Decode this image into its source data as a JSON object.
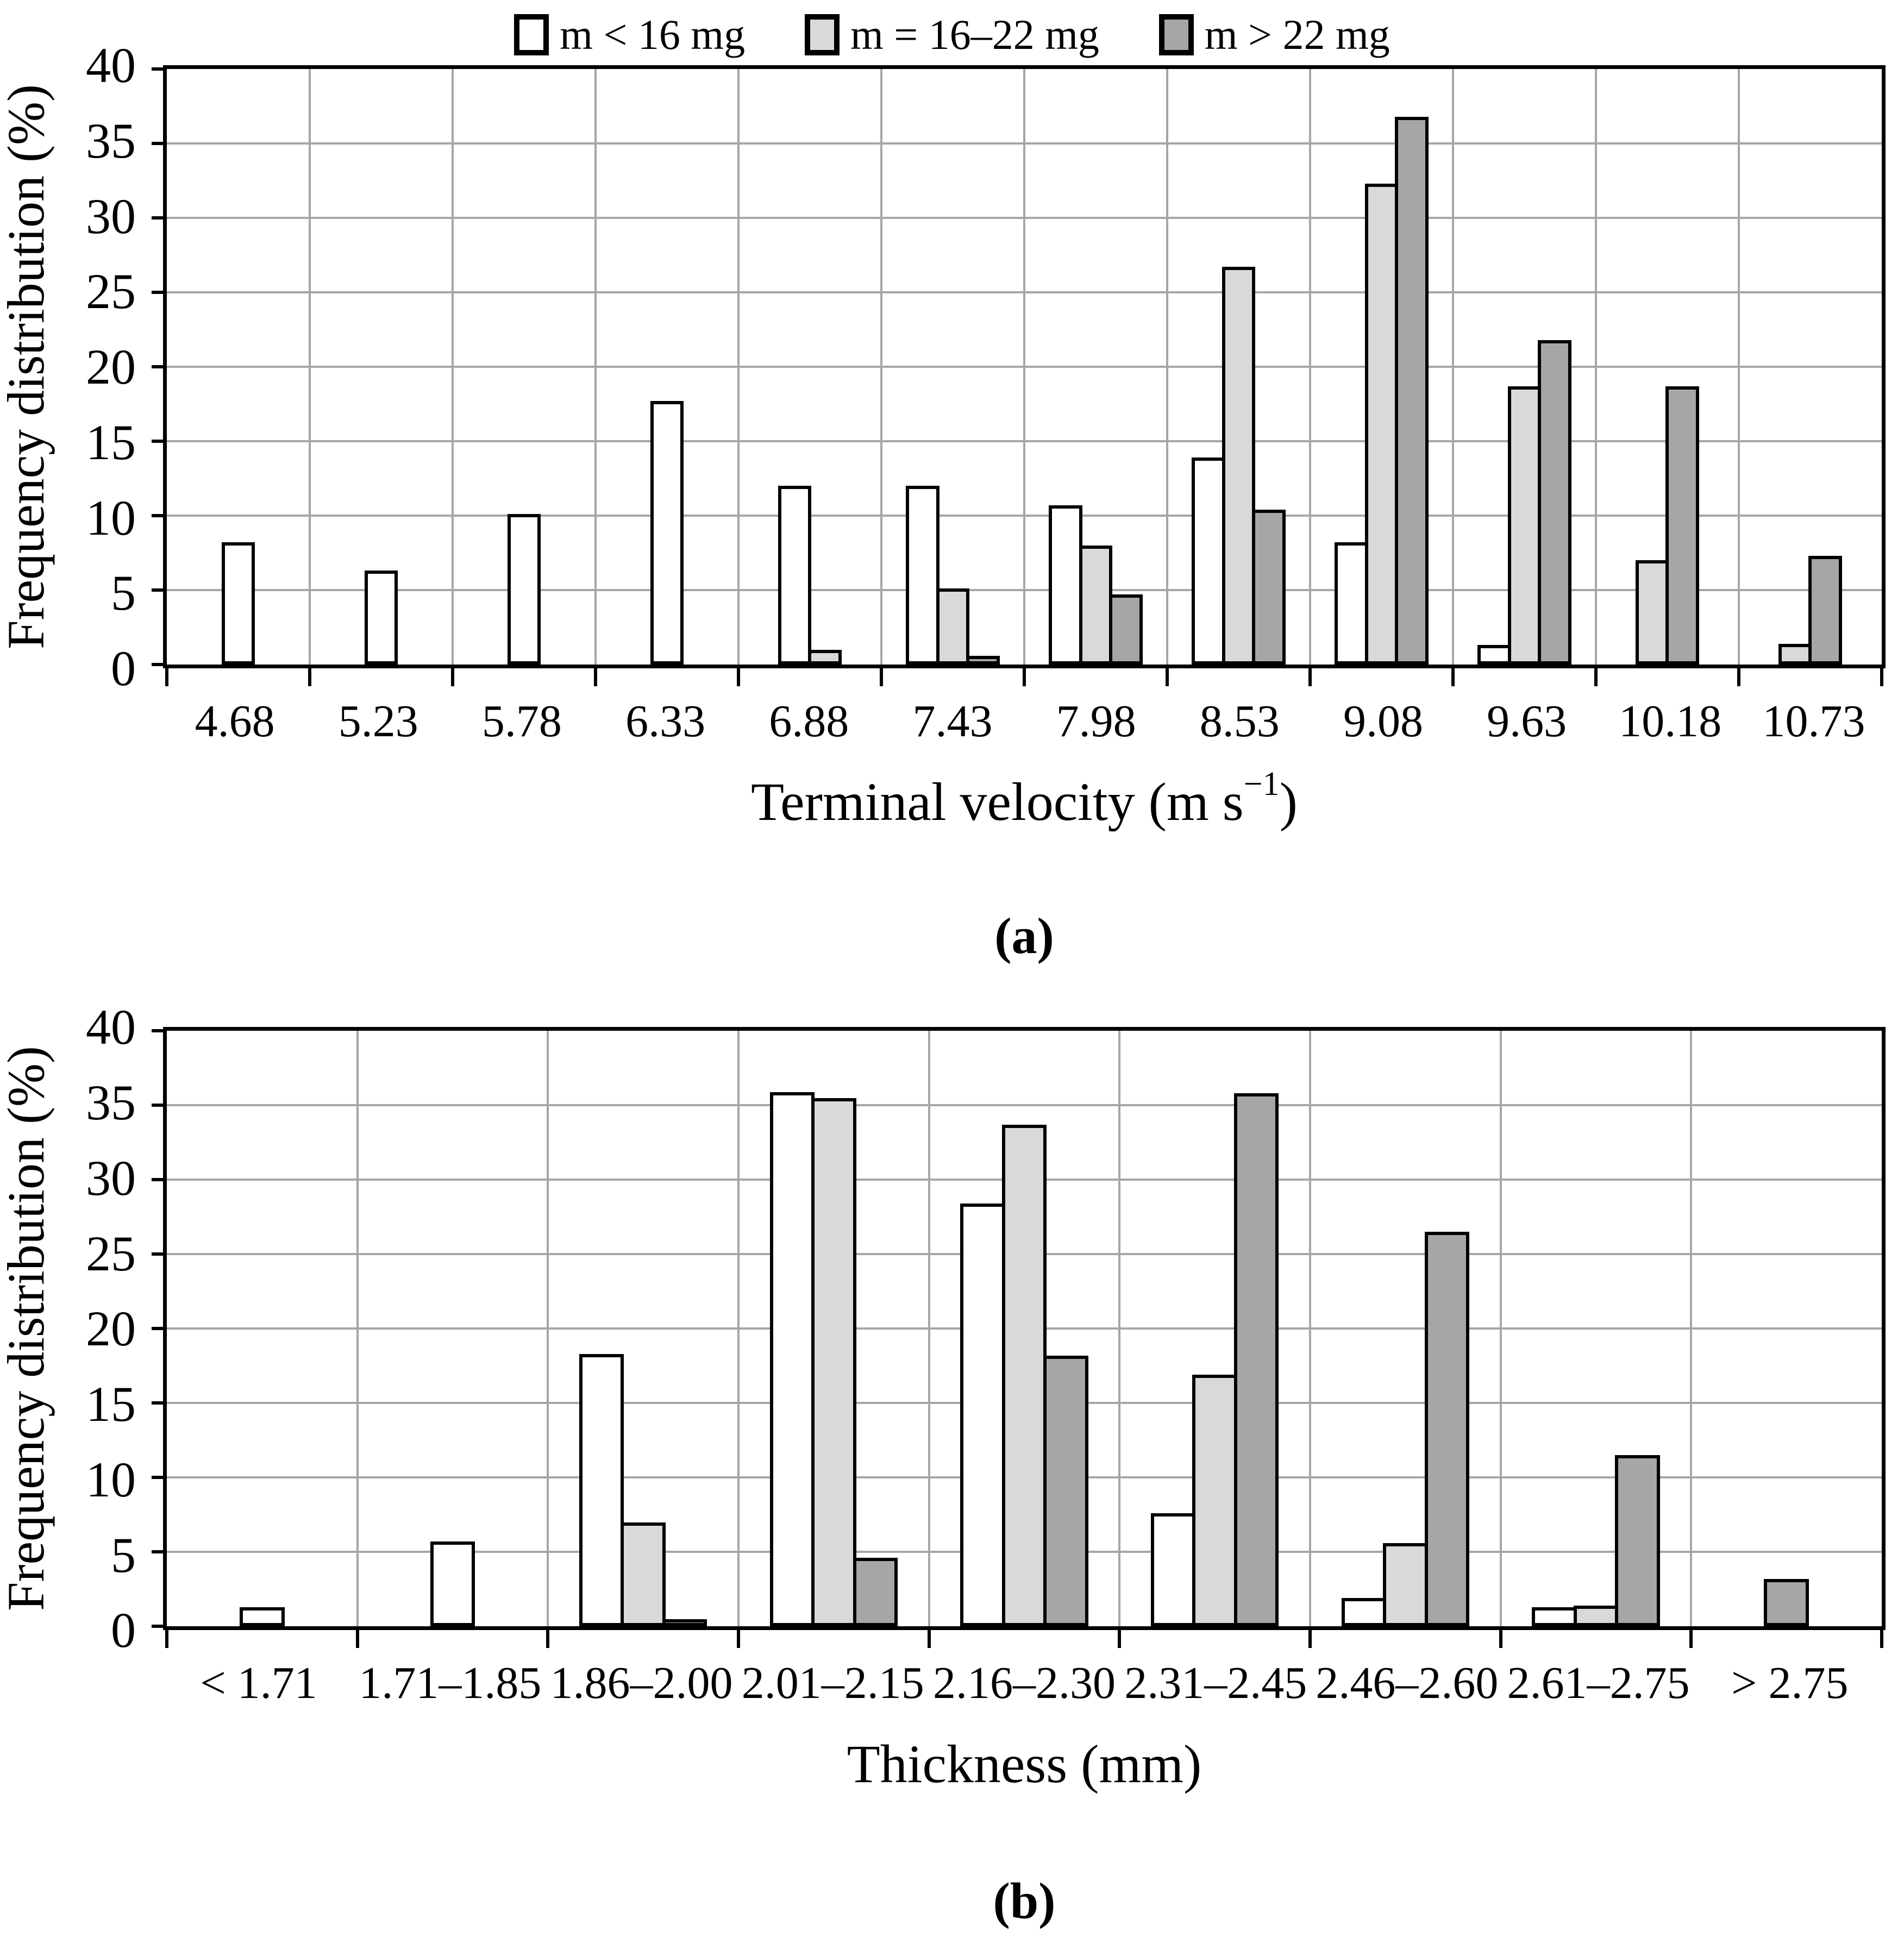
{
  "figure": {
    "background": "#ffffff",
    "legend_position": "top-center",
    "legend": [
      {
        "label": "m < 16 mg",
        "color": "#ffffff"
      },
      {
        "label": "m = 16–22 mg",
        "color": "#d9d9d9"
      },
      {
        "label": "m > 22 mg",
        "color": "#a6a6a6"
      }
    ],
    "gridline_color": "#a6a6a6",
    "bar_border_color": "#000000"
  },
  "chart_data": [
    {
      "type": "bar",
      "title": "(a)",
      "ylabel": "Frequency distribution (%)",
      "xlabel": "Terminal velocity (m s−1)",
      "xlabel_main": "Terminal velocity (m s",
      "xlabel_sup": "−1",
      "xlabel_end": ")",
      "ylim": [
        0,
        40
      ],
      "ytick_step": 5,
      "grid": true,
      "categories": [
        "4.68",
        "5.23",
        "5.78",
        "6.33",
        "6.88",
        "7.43",
        "7.98",
        "8.53",
        "9.08",
        "9.63",
        "10.18",
        "10.73"
      ],
      "series": [
        {
          "name": "m < 16 mg",
          "color": "#ffffff",
          "values": [
            8.2,
            6.3,
            10.1,
            17.7,
            12.0,
            12.0,
            10.7,
            13.9,
            8.2,
            1.3,
            0,
            0
          ]
        },
        {
          "name": "m = 16–22 mg",
          "color": "#d9d9d9",
          "values": [
            0,
            0,
            0,
            0,
            1.0,
            5.1,
            8.0,
            26.7,
            32.3,
            18.7,
            7.0,
            1.4
          ]
        },
        {
          "name": "m > 22 mg",
          "color": "#a6a6a6",
          "values": [
            0,
            0,
            0,
            0,
            0,
            0.6,
            4.7,
            10.4,
            36.8,
            21.8,
            18.7,
            7.3
          ]
        }
      ]
    },
    {
      "type": "bar",
      "title": "(b)",
      "ylabel": "Frequency distribution (%)",
      "xlabel": "Thickness (mm)",
      "xlabel_main": "Thickness (mm)",
      "xlabel_sup": "",
      "xlabel_end": "",
      "ylim": [
        0,
        40
      ],
      "ytick_step": 5,
      "grid": true,
      "categories": [
        "< 1.71",
        "1.71–1.85",
        "1.86–2.00",
        "2.01–2.15",
        "2.16–2.30",
        "2.31–2.45",
        "2.46–2.60",
        "2.61–2.75",
        "> 2.75"
      ],
      "series": [
        {
          "name": "m < 16 mg",
          "color": "#ffffff",
          "values": [
            1.3,
            5.7,
            18.3,
            35.9,
            28.4,
            7.6,
            1.9,
            1.3,
            0
          ]
        },
        {
          "name": "m = 16–22 mg",
          "color": "#d9d9d9",
          "values": [
            0,
            0,
            7.0,
            35.5,
            33.7,
            16.9,
            5.6,
            1.4,
            0
          ]
        },
        {
          "name": "m > 22 mg",
          "color": "#a6a6a6",
          "values": [
            0,
            0,
            0.5,
            4.6,
            18.2,
            35.8,
            26.5,
            11.5,
            3.2
          ]
        }
      ]
    }
  ]
}
